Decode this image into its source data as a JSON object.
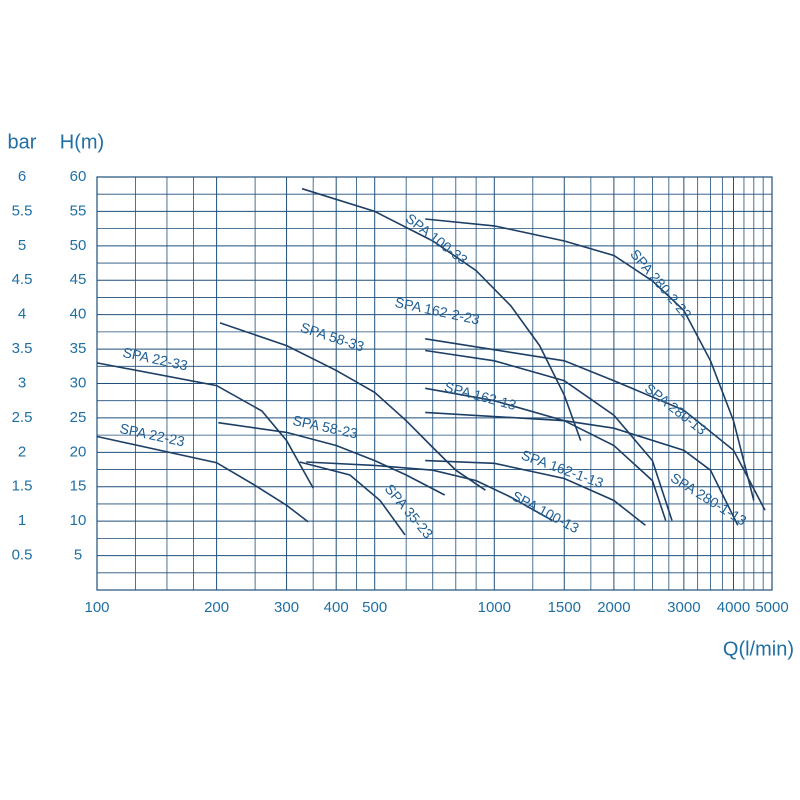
{
  "chart_data": {
    "type": "line",
    "xscale": "log",
    "y_label": "H(m)",
    "y2_label": "bar",
    "x_label": "Q(l/min)",
    "xlim": [
      100,
      5000
    ],
    "xticks": [
      100,
      200,
      300,
      400,
      500,
      1000,
      1500,
      2000,
      3000,
      4000,
      5000
    ],
    "ylim": [
      0,
      60
    ],
    "yticks": [
      5,
      10,
      15,
      20,
      25,
      30,
      35,
      40,
      45,
      50,
      55,
      60
    ],
    "y2lim": [
      0,
      6
    ],
    "y2ticks": [
      0.5,
      1,
      1.5,
      2,
      2.5,
      3,
      3.5,
      4,
      4.5,
      5,
      5.5,
      6
    ],
    "grid": true,
    "x_minor_grid": [
      125,
      150,
      175,
      250,
      350,
      450,
      600,
      700,
      800,
      900,
      1250,
      1750,
      2250,
      2500,
      2750,
      3250,
      3500,
      3750,
      4250,
      4500,
      4750
    ],
    "y_minor_grid": [
      2.5,
      7.5,
      12.5,
      17.5,
      22.5,
      27.5,
      32.5,
      37.5,
      42.5,
      47.5,
      52.5,
      57.5
    ],
    "grid_color": "#1f4f7a",
    "series": [
      {
        "name": "SPA 22-33",
        "color": "#1d3f66",
        "x": [
          100,
          200,
          260,
          300,
          350
        ],
        "values": [
          33,
          29.7,
          26,
          21.7,
          14.8
        ]
      },
      {
        "name": "SPA 22-23",
        "color": "#1d3f66",
        "x": [
          100,
          200,
          250,
          300,
          340
        ],
        "values": [
          22.3,
          18.5,
          15.2,
          12.3,
          9.9
        ]
      },
      {
        "name": "SPA 58-33",
        "color": "#1d3f66",
        "x": [
          204,
          300,
          400,
          500,
          600,
          700,
          800,
          950
        ],
        "values": [
          38.8,
          35.5,
          31.9,
          28.7,
          24.6,
          20.7,
          17.4,
          14.5
        ]
      },
      {
        "name": "SPA 58-23",
        "color": "#1d3f66",
        "x": [
          202,
          300,
          400,
          500,
          600,
          750
        ],
        "values": [
          24.3,
          22.9,
          21,
          18.8,
          16.7,
          13.8
        ]
      },
      {
        "name": "SPA 35-23",
        "color": "#1d3f66",
        "x": [
          324,
          433,
          516,
          596
        ],
        "values": [
          18.6,
          16.7,
          13,
          8
        ]
      },
      {
        "name": "SPA 100-13",
        "color": "#1d3f66",
        "x": [
          336,
          500,
          700,
          900,
          1100,
          1400
        ],
        "values": [
          18.6,
          18.1,
          17.4,
          15.9,
          13.5,
          10.1
        ]
      },
      {
        "name": "SPA 100-33",
        "color": "#1d3f66",
        "x": [
          328,
          500,
          700,
          900,
          1100,
          1300,
          1500,
          1650
        ],
        "values": [
          58.3,
          55,
          50.7,
          46.4,
          41.3,
          35.5,
          28.3,
          21.7
        ]
      },
      {
        "name": "SPA 162-2-23",
        "color": "#1d3f66",
        "x": [
          670,
          1000,
          1500,
          2000,
          2500,
          2800
        ],
        "values": [
          34.8,
          33.3,
          30.4,
          25.4,
          18.8,
          10.1
        ]
      },
      {
        "name": "SPA 162-13",
        "color": "#1d3f66",
        "x": [
          670,
          1000,
          1500,
          2000,
          2500,
          2700
        ],
        "values": [
          29.3,
          27.5,
          24.6,
          21,
          15.9,
          10.1
        ]
      },
      {
        "name": "SPA 162-1-13",
        "color": "#1d3f66",
        "x": [
          670,
          1000,
          1500,
          2000,
          2400
        ],
        "values": [
          18.8,
          18.4,
          16.2,
          13,
          9.4
        ]
      },
      {
        "name": "SPA 280-2-22",
        "color": "#1d3f66",
        "x": [
          670,
          1000,
          1500,
          2000,
          2500,
          3000,
          3500,
          4000,
          4500
        ],
        "values": [
          53.9,
          52.9,
          50.7,
          48.6,
          44.9,
          40.6,
          33.3,
          24.6,
          13
        ]
      },
      {
        "name": "SPA 280-13",
        "color": "#1d3f66",
        "x": [
          670,
          1500,
          2000,
          3000,
          4000,
          4800
        ],
        "values": [
          36.5,
          33.3,
          30.4,
          26.1,
          20.3,
          11.6
        ]
      },
      {
        "name": "SPA 280-1-13",
        "color": "#1d3f66",
        "x": [
          670,
          1500,
          2000,
          3000,
          3500,
          4100
        ],
        "values": [
          25.8,
          24.6,
          23.5,
          20.3,
          17.4,
          9.4
        ]
      }
    ]
  }
}
